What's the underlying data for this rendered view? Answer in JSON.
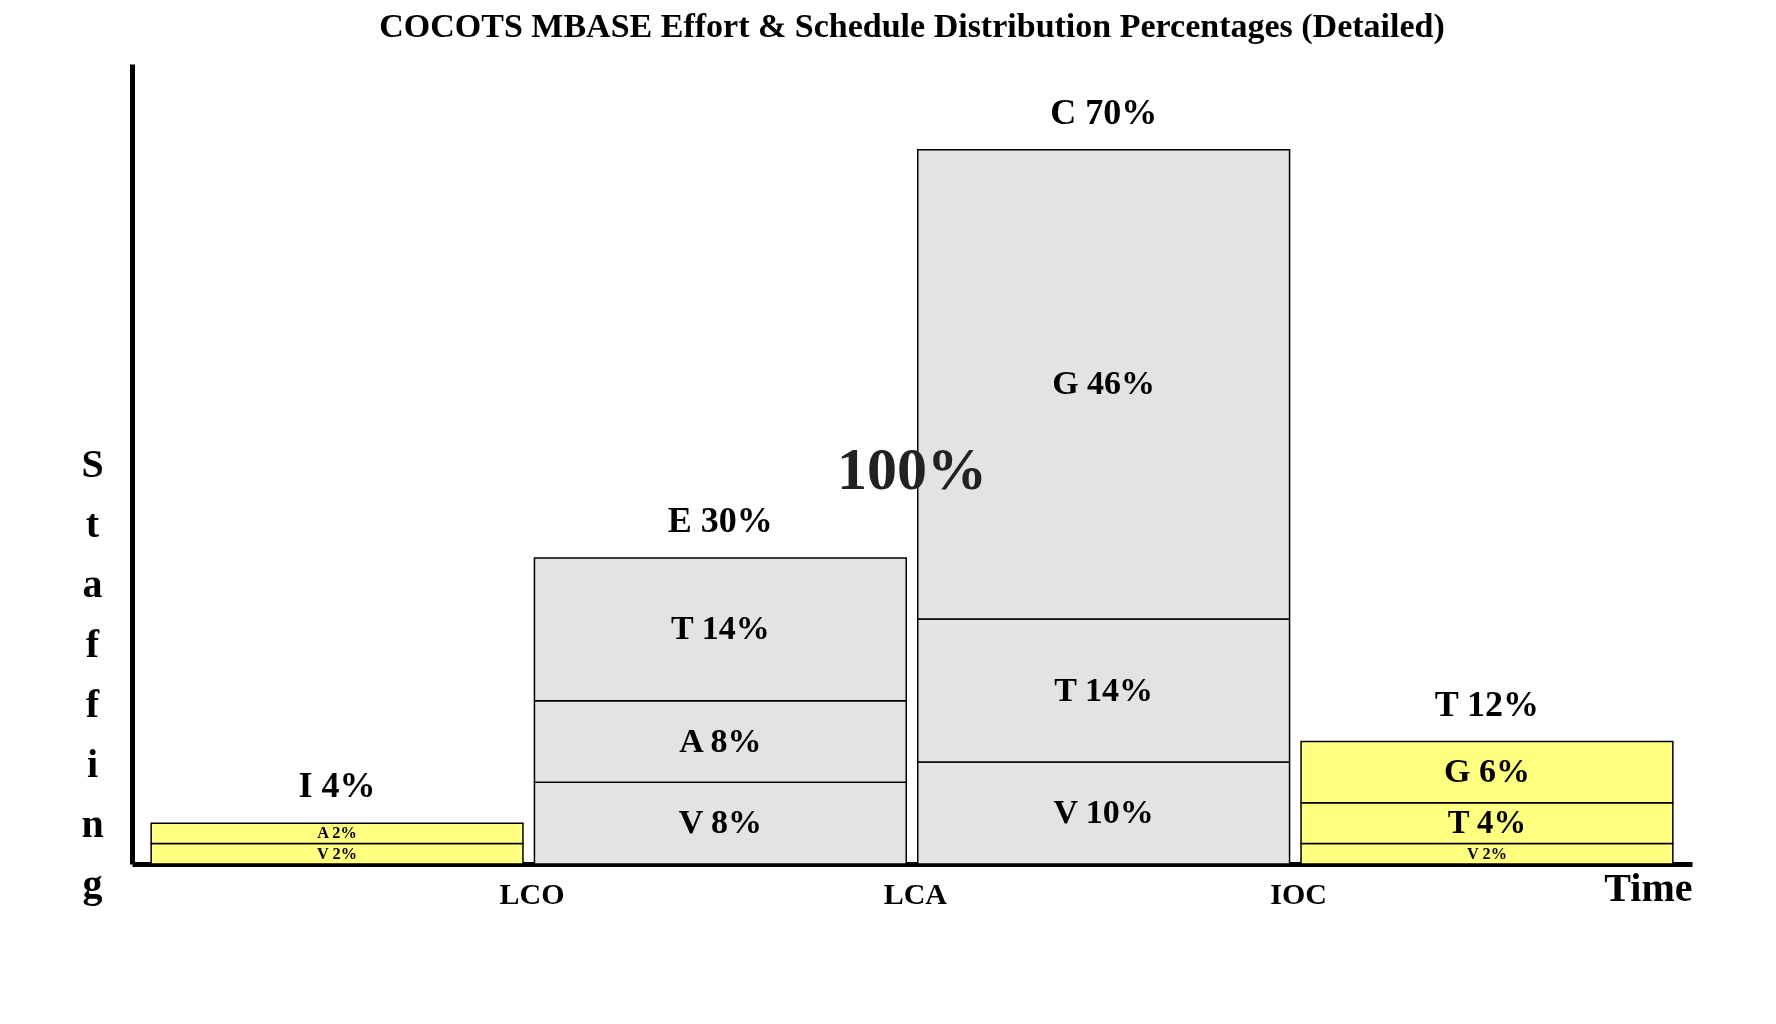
{
  "chart_data": {
    "type": "bar",
    "title": "COCOTS MBASE Effort & Schedule Distribution Percentages (Detailed)",
    "xlabel": "Time",
    "ylabel": "Staffing",
    "categories": [
      null,
      null,
      null,
      null
    ],
    "stacked": true,
    "series": [
      {
        "colors": [
          "#ffff80",
          "#e3e3e3",
          "#e3e3e3",
          "#ffff80"
        ],
        "values": [
          2,
          8,
          10,
          2
        ],
        "value_labels": [
          "V 2%",
          "V 8%",
          "V 10%",
          "V 2%"
        ]
      },
      {
        "colors": [
          "#ffff80",
          "#e3e3e3",
          null,
          null
        ],
        "values": [
          2,
          8,
          null,
          null
        ],
        "value_labels": [
          "A 2%",
          "A 8%",
          null,
          null
        ]
      },
      {
        "colors": [
          null,
          "#e3e3e3",
          "#e3e3e3",
          "#ffff80"
        ],
        "values": [
          null,
          14,
          14,
          4
        ],
        "value_labels": [
          null,
          "T 14%",
          "T 14%",
          "T 4%"
        ]
      },
      {
        "colors": [
          null,
          null,
          "#e3e3e3",
          "#ffff80"
        ],
        "values": [
          null,
          null,
          46,
          6
        ],
        "value_labels": [
          null,
          null,
          "G 46%",
          "G 6%"
        ]
      }
    ],
    "totals": [
      "I 4%",
      "E 30%",
      "C 70%",
      "T 12%"
    ],
    "annotations": [
      "LCO",
      "LCA",
      "IOC",
      "100%"
    ]
  }
}
